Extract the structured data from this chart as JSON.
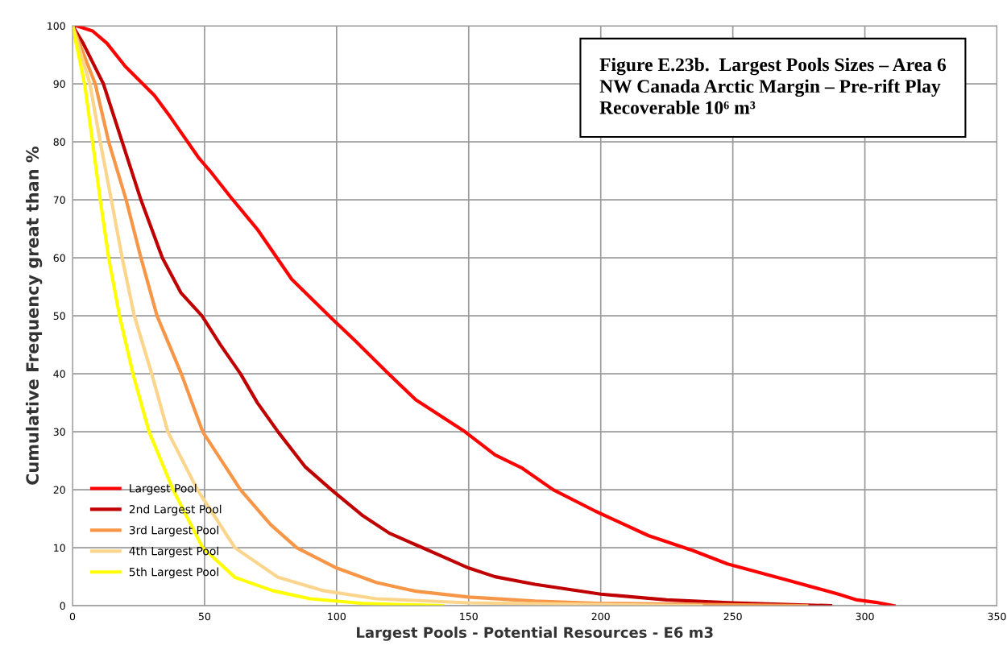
{
  "chart_data": {
    "type": "line",
    "title": "Figure E.23b.  Largest Pools Sizes – Area 6\nNW Canada Arctic Margin – Pre-rift Play\nRecoverable 10⁶ m³",
    "xlabel": "Largest Pools - Potential Resources - E6 m3",
    "ylabel": "Cumulative Frequency great than %",
    "xlim": [
      0,
      350
    ],
    "xticks": [
      0,
      50,
      100,
      150,
      200,
      250,
      300,
      350
    ],
    "ylim": [
      0,
      100
    ],
    "yticks": [
      0,
      10,
      20,
      30,
      40,
      50,
      60,
      70,
      80,
      90,
      100
    ],
    "grid": true,
    "legend": "bottom left",
    "marker": "none",
    "line_style": "solid",
    "series": [
      {
        "name": "Largest Pool",
        "color": "#ff0000",
        "x": [
          0,
          1.5,
          7.6,
          13,
          20,
          31,
          37,
          48,
          52,
          60,
          70,
          83,
          98,
          107,
          119,
          130,
          148,
          160,
          170,
          182,
          198,
          218,
          235,
          248,
          270,
          290,
          297,
          304,
          311
        ],
        "values": [
          100,
          100,
          99.1,
          97,
          93,
          88,
          84.3,
          77.1,
          75,
          70.4,
          64.9,
          56.3,
          49.6,
          45.7,
          40.3,
          35.5,
          30.2,
          26,
          23.8,
          20,
          16.3,
          12.1,
          9.5,
          7.2,
          4.5,
          2,
          1,
          0.6,
          0
        ]
      },
      {
        "name": "2nd Largest Pool",
        "color": "#c00000",
        "x": [
          0,
          4,
          11.7,
          18.8,
          25.9,
          34,
          41,
          49,
          56,
          63.6,
          70,
          77.8,
          88,
          98,
          110,
          120,
          130,
          140,
          150,
          160,
          175,
          200,
          225,
          250,
          287
        ],
        "values": [
          100,
          97,
          90,
          80,
          70,
          60,
          54,
          50,
          45,
          40,
          35,
          30,
          24,
          20,
          15.5,
          12.5,
          10.5,
          8.5,
          6.5,
          5,
          3.7,
          2,
          1,
          0.5,
          0
        ]
      },
      {
        "name": "3rd Largest Pool",
        "color": "#f79646",
        "x": [
          0,
          8.6,
          13.7,
          20.3,
          25.9,
          32,
          41.2,
          49.3,
          63.6,
          75,
          84.9,
          100,
          115,
          130,
          150,
          175,
          200,
          240,
          278
        ],
        "values": [
          100,
          90,
          80,
          70,
          60,
          50,
          40,
          30,
          20,
          14,
          10,
          6.5,
          4,
          2.5,
          1.5,
          0.8,
          0.4,
          0.2,
          0
        ]
      },
      {
        "name": "4th Largest Pool",
        "color": "#fcd58c",
        "x": [
          0,
          6.6,
          10.5,
          14.7,
          18.8,
          23.4,
          30,
          36.1,
          47.3,
          61.5,
          77.8,
          95,
          115,
          150,
          200,
          238
        ],
        "values": [
          100,
          90,
          80,
          70,
          60,
          50,
          40,
          30,
          20,
          10,
          4.9,
          2.6,
          1.2,
          0.5,
          0.2,
          0
        ]
      },
      {
        "name": "5th Largest Pool",
        "color": "#ffff00",
        "x": [
          0,
          4.6,
          7.6,
          10.5,
          13.7,
          17.8,
          22.9,
          29,
          38.1,
          49.3,
          61.5,
          75.7,
          90,
          110,
          140
        ],
        "values": [
          100,
          90,
          80,
          70,
          60,
          50,
          40,
          30,
          20,
          10,
          4.9,
          2.6,
          1.2,
          0.4,
          0
        ]
      }
    ]
  }
}
